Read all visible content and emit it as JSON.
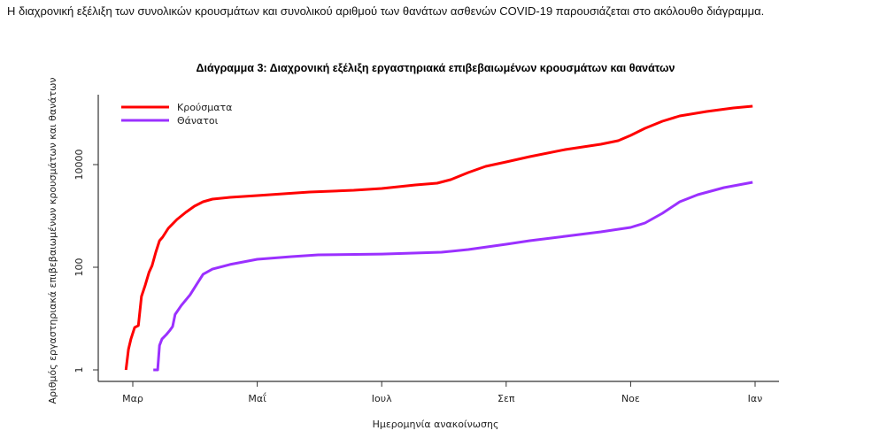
{
  "intro_text": "Η διαχρονική εξέλιξη των συνολικών κρουσμάτων και συνολικού αριθμού των θανάτων ασθενών COVID-19 παρουσιάζεται στο ακόλουθο διάγραμμα.",
  "chart_data": {
    "type": "line",
    "title": "Διάγραμμα 3: Διαχρονική εξέλιξη εργαστηριακά επιβεβαιωμένων κρουσμάτων και θανάτων",
    "xlabel": "Ημερομηνία ανακοίνωσης",
    "ylabel": "Αριθμός εργαστηριακά επιβεβαιωμένων κρουσμάτων και θανάτων",
    "yscale": "log",
    "x_unit": "months since 1 March",
    "x_ticks": [
      {
        "value": 0,
        "label": "Μαρ"
      },
      {
        "value": 2,
        "label": "Μαΐ"
      },
      {
        "value": 4,
        "label": "Ιουλ"
      },
      {
        "value": 6,
        "label": "Σεπ"
      },
      {
        "value": 8,
        "label": "Νοε"
      },
      {
        "value": 10,
        "label": "Ιαν"
      }
    ],
    "y_ticks": [
      {
        "value": 1,
        "label": "1"
      },
      {
        "value": 100,
        "label": "100"
      },
      {
        "value": 10000,
        "label": "10000"
      }
    ],
    "legend_position": "top-left",
    "series": [
      {
        "name": "Κρούσματα",
        "color": "#ff0000",
        "x": [
          -0.11,
          -0.07,
          -0.03,
          0.03,
          0.09,
          0.14,
          0.2,
          0.26,
          0.31,
          0.37,
          0.43,
          0.48,
          0.57,
          0.71,
          0.85,
          0.99,
          1.13,
          1.28,
          1.56,
          2,
          2.84,
          3.55,
          4,
          4.54,
          4.89,
          5.11,
          5.39,
          5.67,
          6,
          6.38,
          6.95,
          7.52,
          7.8,
          8,
          8.23,
          8.51,
          8.79,
          9.22,
          9.65,
          9.96
        ],
        "y": [
          1,
          2.5,
          4,
          6.7,
          7.3,
          27,
          45,
          79,
          108,
          196,
          329,
          386,
          574,
          853,
          1172,
          1549,
          1888,
          2128,
          2302,
          2494,
          2924,
          3162,
          3422,
          4010,
          4345,
          5093,
          7000,
          9247,
          11270,
          14290,
          19640,
          24960,
          29220,
          37090,
          50950,
          70000,
          88770,
          108200,
          126700,
          137400
        ]
      },
      {
        "name": "Θάνατοι",
        "color": "#9b30ff",
        "x": [
          0.33,
          0.4,
          0.43,
          0.47,
          0.54,
          0.6,
          0.64,
          0.68,
          0.78,
          0.92,
          1.02,
          1.13,
          1.28,
          1.56,
          2,
          2.55,
          2.98,
          4,
          4.96,
          5.39,
          6,
          6.38,
          6.95,
          7.52,
          8,
          8.23,
          8.51,
          8.79,
          9.08,
          9.5,
          9.96
        ],
        "y": [
          1,
          1,
          3,
          4,
          4.9,
          6,
          7,
          12,
          18,
          29,
          45,
          73,
          92,
          113,
          143,
          161,
          174,
          181,
          196,
          221,
          281,
          329,
          401,
          490,
          597,
          728,
          1127,
          1888,
          2594,
          3564,
          4519
        ]
      }
    ]
  }
}
